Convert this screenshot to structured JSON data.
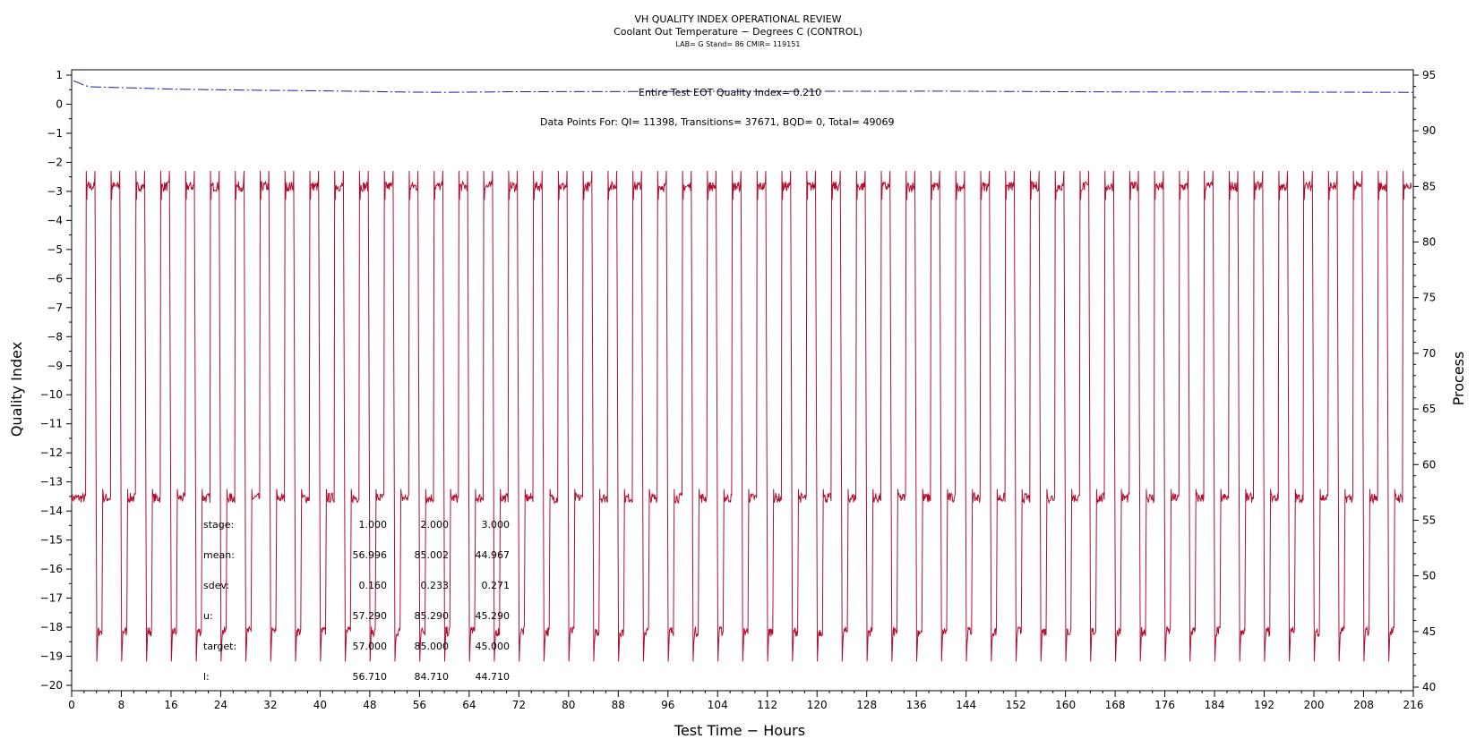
{
  "header": {
    "title": "VH QUALITY INDEX OPERATIONAL REVIEW",
    "subtitle": "Coolant Out Temperature − Degrees C (CONTROL)",
    "subtitle2": "LAB= G Stand= 86 CMIR= 119151"
  },
  "annotations": {
    "quality_index": "Entire Test EOT Quality Index=   0.210",
    "data_points": "Data Points For: QI= 11398, Transitions= 37671, BQD=     0, Total= 49069"
  },
  "axes": {
    "xlabel": "Test Time − Hours",
    "ylabel_left": "Quality Index",
    "ylabel_right": "Process"
  },
  "stats": {
    "row_labels": [
      "stage:",
      "mean:",
      "sdev:",
      "u:",
      "target:",
      "l:"
    ],
    "columns": [
      [
        "1.000",
        "56.996",
        "0.160",
        "57.290",
        "57.000",
        "56.710"
      ],
      [
        "2.000",
        "85.002",
        "0.233",
        "85.290",
        "85.000",
        "84.710"
      ],
      [
        "3.000",
        "44.967",
        "0.271",
        "45.290",
        "45.000",
        "44.710"
      ]
    ]
  },
  "chart_data": {
    "type": "line",
    "title": "VH QUALITY INDEX OPERATIONAL REVIEW",
    "xlabel": "Test Time − Hours",
    "ylabel": "Quality Index",
    "y2label": "Process",
    "xlim": [
      0,
      216
    ],
    "ylim": [
      -20,
      1
    ],
    "y2lim": [
      40,
      95
    ],
    "x_ticks": [
      0,
      8,
      16,
      24,
      32,
      40,
      48,
      56,
      64,
      72,
      80,
      88,
      96,
      104,
      112,
      120,
      128,
      136,
      144,
      152,
      160,
      168,
      176,
      184,
      192,
      200,
      208,
      216
    ],
    "y_ticks": [
      1,
      0,
      -1,
      -2,
      -3,
      -4,
      -5,
      -6,
      -7,
      -8,
      -9,
      -10,
      -11,
      -12,
      -13,
      -14,
      -15,
      -16,
      -17,
      -18,
      -19,
      -20
    ],
    "y2_ticks": [
      95,
      90,
      85,
      80,
      75,
      70,
      65,
      60,
      55,
      50,
      45,
      40
    ],
    "series": [
      {
        "axis": "left",
        "color": "#1a1aa8",
        "style": "dash-dot",
        "points": [
          [
            0.3,
            0.8
          ],
          [
            1,
            0.75
          ],
          [
            2,
            0.65
          ],
          [
            3,
            0.6
          ],
          [
            6,
            0.58
          ],
          [
            10,
            0.56
          ],
          [
            16,
            0.52
          ],
          [
            22,
            0.5
          ],
          [
            30,
            0.48
          ],
          [
            40,
            0.46
          ],
          [
            48,
            0.44
          ],
          [
            52,
            0.42
          ],
          [
            60,
            0.41
          ],
          [
            72,
            0.43
          ],
          [
            100,
            0.44
          ],
          [
            140,
            0.45
          ],
          [
            160,
            0.43
          ],
          [
            170,
            0.42
          ],
          [
            190,
            0.42
          ],
          [
            216,
            0.41
          ]
        ]
      },
      {
        "axis": "right",
        "color": "#b01030",
        "style": "solid",
        "cycle_hours": 4,
        "first_rise_hours": 2.3,
        "high_duration_hours": 1.4,
        "mid_duration_hours": 1.6,
        "levels": {
          "high": 85,
          "mid": 57,
          "low": 45
        },
        "transients": {
          "overshoot_high": 86.4,
          "undershoot_low": 42.3,
          "high_dip": 83.8,
          "mid_spike": 57.8
        }
      }
    ]
  },
  "colors": {
    "quality_index_line": "#1a1aa8",
    "process_line": "#b01030",
    "axis": "#000000"
  }
}
